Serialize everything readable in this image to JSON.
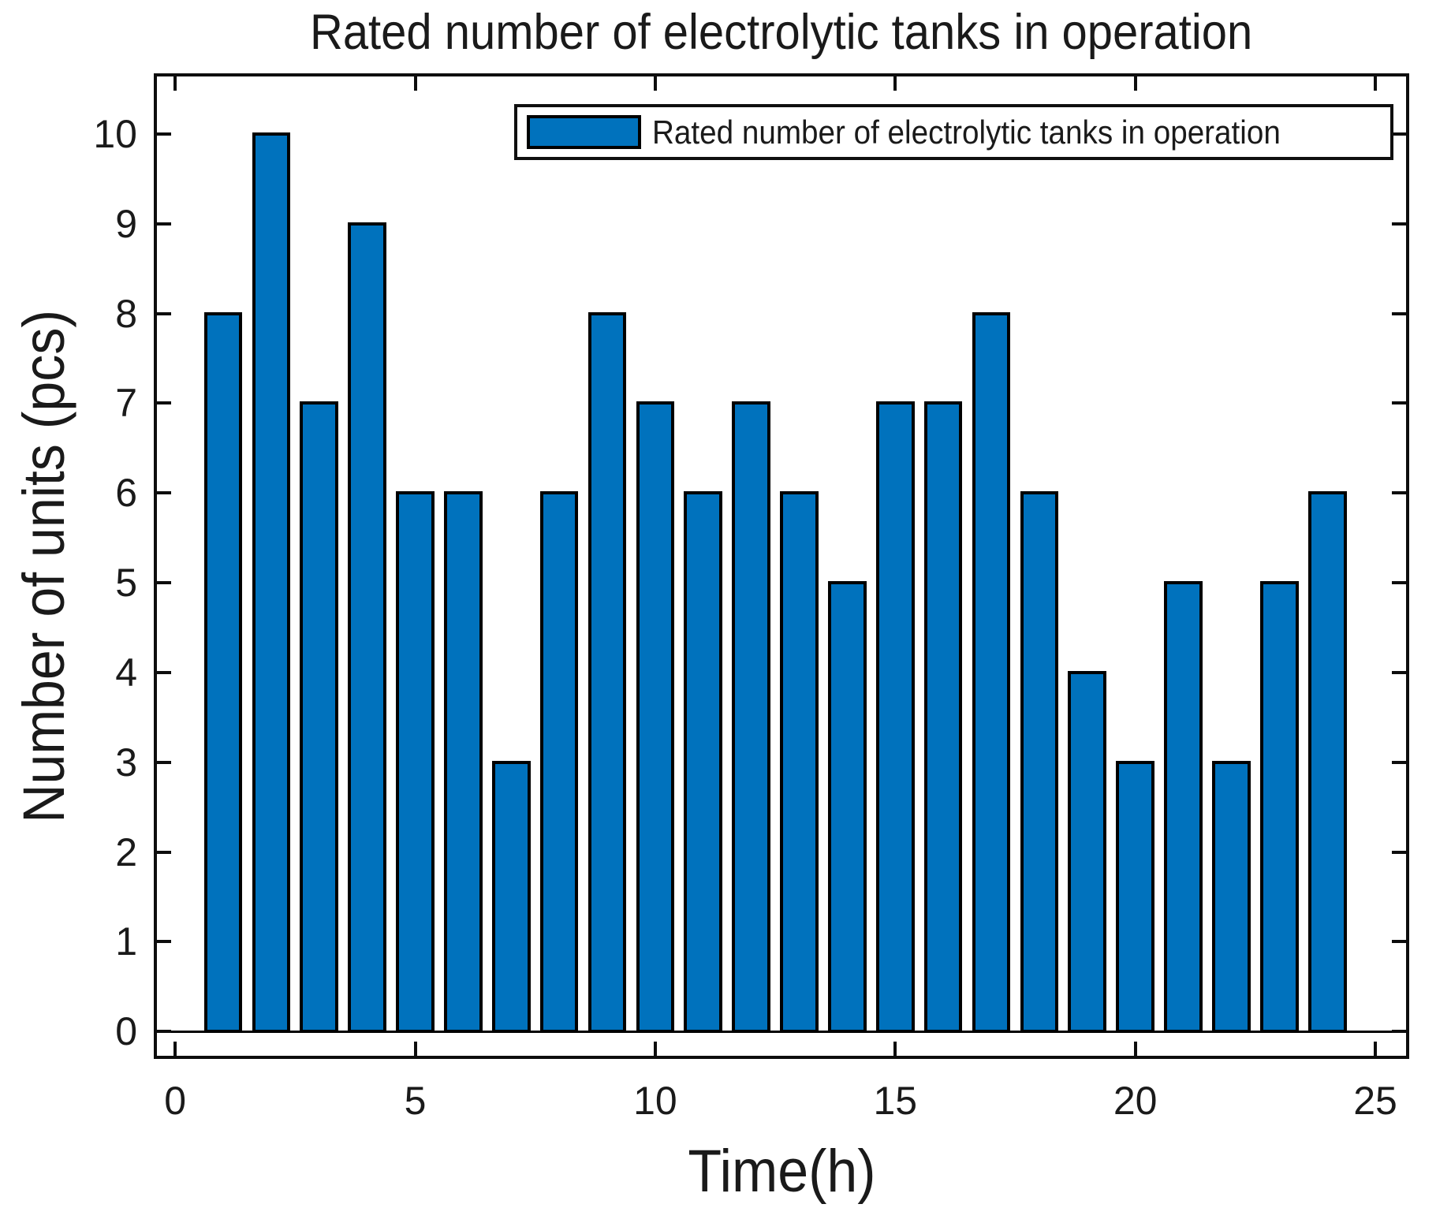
{
  "figure": {
    "title": "Rated number of electrolytic tanks in operation",
    "xlabel": "Time(h)",
    "ylabel": "Number of units (pcs)"
  },
  "legend": {
    "entries": [
      {
        "label": "Rated number of electrolytic tanks in operation",
        "swatch_color": "#0072BD"
      }
    ],
    "position": "north-inside"
  },
  "chart_data": {
    "type": "bar",
    "title": "Rated number of electrolytic tanks in operation",
    "xlabel": "Time(h)",
    "ylabel": "Number of units (pcs)",
    "x": [
      1,
      2,
      3,
      4,
      5,
      6,
      7,
      8,
      9,
      10,
      11,
      12,
      13,
      14,
      15,
      16,
      17,
      18,
      19,
      20,
      21,
      22,
      23,
      24
    ],
    "values": [
      8,
      10,
      7,
      9,
      6,
      6,
      3,
      6,
      8,
      7,
      6,
      7,
      6,
      5,
      7,
      7,
      8,
      6,
      4,
      3,
      5,
      3,
      5,
      6
    ],
    "bar_color": "#0072BD",
    "bar_edge_color": "#000000",
    "bar_width": 0.8,
    "xlim": [
      -0.38,
      25.64
    ],
    "ylim": [
      -0.27,
      10.64
    ],
    "xticks": [
      0,
      5,
      10,
      15,
      20,
      25
    ],
    "yticks": [
      0,
      1,
      2,
      3,
      4,
      5,
      6,
      7,
      8,
      9,
      10
    ],
    "grid": false,
    "legend": [
      "Rated number of electrolytic tanks in operation"
    ],
    "legend_position": "top-inside",
    "axis_color": "#0d0d0d",
    "background": "#ffffff"
  }
}
